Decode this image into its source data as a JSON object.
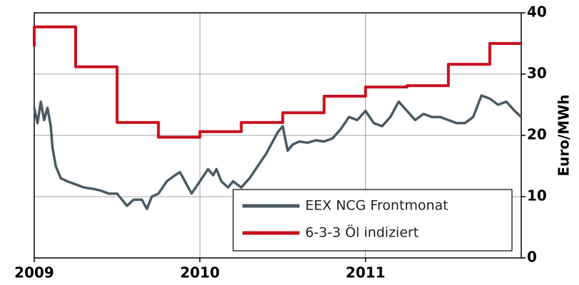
{
  "chart_data": {
    "type": "line",
    "y_label": "Euro/MWh",
    "xlim": [
      2009,
      2011.94
    ],
    "xticks": [
      2009,
      2010,
      2011
    ],
    "ylim": [
      0,
      40
    ],
    "yticks": [
      0,
      10,
      20,
      30,
      40
    ],
    "grid": true,
    "legend": "lower right",
    "series": [
      {
        "name": "EEX NCG Frontmonat",
        "color": "#4a5a63",
        "x": [
          2009,
          2009.02,
          2009.04,
          2009.06,
          2009.08,
          2009.1,
          2009.11,
          2009.13,
          2009.16,
          2009.2,
          2009.25,
          2009.3,
          2009.35,
          2009.4,
          2009.45,
          2009.5,
          2009.53,
          2009.56,
          2009.6,
          2009.65,
          2009.68,
          2009.71,
          2009.75,
          2009.8,
          2009.85,
          2009.88,
          2009.92,
          2009.95,
          2010,
          2010.05,
          2010.08,
          2010.1,
          2010.13,
          2010.17,
          2010.2,
          2010.25,
          2010.3,
          2010.35,
          2010.4,
          2010.43,
          2010.47,
          2010.5,
          2010.53,
          2010.56,
          2010.6,
          2010.65,
          2010.7,
          2010.75,
          2010.8,
          2010.85,
          2010.9,
          2010.95,
          2011,
          2011.05,
          2011.1,
          2011.15,
          2011.2,
          2011.25,
          2011.3,
          2011.35,
          2011.4,
          2011.45,
          2011.5,
          2011.55,
          2011.6,
          2011.65,
          2011.7,
          2011.75,
          2011.8,
          2011.85,
          2011.9,
          2011.94
        ],
        "values": [
          24.5,
          22,
          25.5,
          22.5,
          24.5,
          21.5,
          18,
          15,
          13,
          12.5,
          12,
          11.5,
          11.3,
          11,
          10.5,
          10.5,
          9.5,
          8.5,
          9.5,
          9.5,
          8,
          10,
          10.5,
          12.5,
          13.5,
          14,
          12,
          10.5,
          12.5,
          14.5,
          13.5,
          14.5,
          12.5,
          11.5,
          12.5,
          11.5,
          13,
          15,
          17,
          18.5,
          20.5,
          21.5,
          17.5,
          18.5,
          19,
          18.8,
          19.2,
          19,
          19.5,
          21,
          23,
          22.5,
          24,
          22,
          21.5,
          23,
          25.5,
          24,
          22.5,
          23.5,
          23,
          23,
          22.5,
          22,
          22,
          23,
          26.5,
          26,
          25,
          25.5,
          24,
          23
        ]
      },
      {
        "name": "6-3-3 Öl indiziert",
        "color": "#c8101e",
        "x": [
          2009,
          2009,
          2009.25,
          2009.25,
          2009.5,
          2009.5,
          2009.75,
          2009.75,
          2010,
          2010,
          2010.25,
          2010.25,
          2010.5,
          2010.5,
          2010.75,
          2010.75,
          2011,
          2011,
          2011.25,
          2011.25,
          2011.5,
          2011.5,
          2011.75,
          2011.75,
          2011.94
        ],
        "values": [
          34.5,
          37.7,
          37.7,
          31.2,
          31.2,
          22.1,
          22.1,
          19.7,
          19.7,
          20.6,
          20.6,
          22.1,
          22.1,
          23.7,
          23.7,
          26.4,
          26.4,
          27.9,
          27.9,
          28.1,
          28.1,
          31.6,
          31.6,
          35,
          35
        ]
      }
    ]
  }
}
